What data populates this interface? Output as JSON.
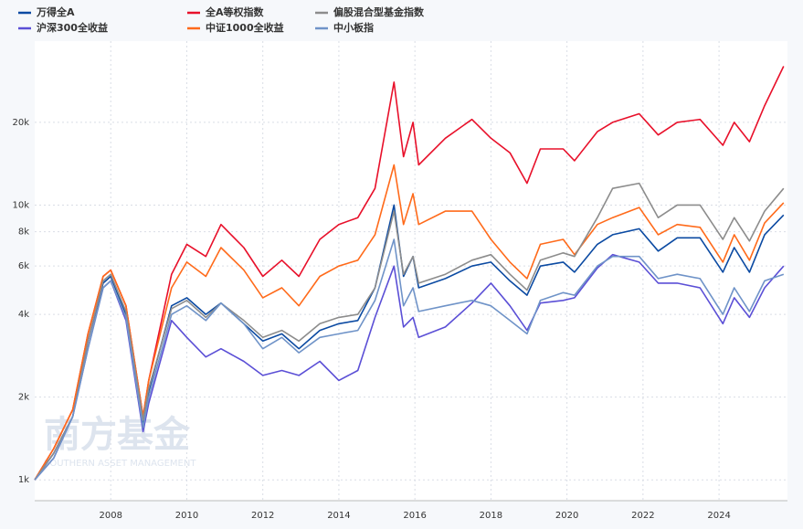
{
  "chart_data": {
    "type": "line",
    "log_scale": true,
    "grid": true,
    "legend_position": "top",
    "watermark": {
      "title": "南方基金",
      "subtitle": "SOUTHERN ASSET MANAGEMENT"
    },
    "xlim": [
      2006,
      2025.8
    ],
    "xticks": [
      2008,
      2010,
      2012,
      2014,
      2016,
      2018,
      2020,
      2022,
      2024
    ],
    "ylim": [
      840,
      39500
    ],
    "yticks": [
      {
        "value": 1000,
        "label": "1k"
      },
      {
        "value": 2000,
        "label": "2k"
      },
      {
        "value": 4000,
        "label": "4k"
      },
      {
        "value": 6000,
        "label": "6k"
      },
      {
        "value": 8000,
        "label": "8k"
      },
      {
        "value": 10000,
        "label": "10k"
      },
      {
        "value": 20000,
        "label": "20k"
      }
    ],
    "x": [
      2006.0,
      2006.5,
      2007.0,
      2007.4,
      2007.8,
      2008.0,
      2008.4,
      2008.85,
      2009.0,
      2009.6,
      2010.0,
      2010.5,
      2010.9,
      2011.5,
      2012.0,
      2012.5,
      2012.95,
      2013.5,
      2014.0,
      2014.5,
      2014.95,
      2015.45,
      2015.7,
      2015.95,
      2016.1,
      2016.8,
      2017.5,
      2018.0,
      2018.5,
      2018.95,
      2019.3,
      2019.9,
      2020.2,
      2020.8,
      2021.2,
      2021.9,
      2022.4,
      2022.9,
      2023.5,
      2024.1,
      2024.4,
      2024.8,
      2025.2,
      2025.7
    ],
    "series": [
      {
        "name": "万得全A",
        "color": "#0b4aa2",
        "values": [
          1000,
          1250,
          1700,
          3200,
          5200,
          5500,
          4000,
          1600,
          2100,
          4300,
          4600,
          4000,
          4400,
          3700,
          3200,
          3400,
          3000,
          3500,
          3700,
          3800,
          5000,
          10000,
          5500,
          6500,
          5000,
          5400,
          6000,
          6200,
          5300,
          4700,
          6000,
          6200,
          5700,
          7200,
          7800,
          8200,
          6800,
          7600,
          7600,
          5700,
          7000,
          5700,
          7800,
          9200
        ]
      },
      {
        "name": "沪深300全收益",
        "color": "#5b4fd6",
        "values": [
          1000,
          1200,
          1700,
          3000,
          5000,
          5300,
          3800,
          1500,
          1900,
          3800,
          3300,
          2800,
          3000,
          2700,
          2400,
          2500,
          2400,
          2700,
          2300,
          2500,
          3900,
          6000,
          3600,
          3900,
          3300,
          3600,
          4400,
          5200,
          4300,
          3500,
          4400,
          4500,
          4600,
          5900,
          6600,
          6200,
          5200,
          5200,
          5000,
          3700,
          4600,
          3900,
          5000,
          6000
        ]
      },
      {
        "name": "全A等权指数",
        "color": "#e8102a",
        "values": [
          1000,
          1300,
          1800,
          3400,
          5500,
          5800,
          4300,
          1700,
          2300,
          5600,
          7200,
          6500,
          8500,
          7000,
          5500,
          6300,
          5500,
          7500,
          8500,
          9000,
          11500,
          28000,
          15000,
          20000,
          14000,
          17500,
          20500,
          17500,
          15500,
          12000,
          16000,
          16000,
          14500,
          18500,
          20000,
          21500,
          18000,
          20000,
          20500,
          16500,
          20000,
          17000,
          23000,
          32000
        ]
      },
      {
        "name": "中证1000全收益",
        "color": "#ff6a1a",
        "values": [
          1000,
          1300,
          1800,
          3400,
          5500,
          5800,
          4300,
          1700,
          2300,
          5000,
          6200,
          5500,
          7000,
          5800,
          4600,
          5000,
          4300,
          5500,
          6000,
          6300,
          7800,
          14000,
          8500,
          11000,
          8500,
          9500,
          9500,
          7500,
          6200,
          5400,
          7200,
          7500,
          6600,
          8500,
          9000,
          9800,
          7800,
          8500,
          8300,
          6200,
          7800,
          6300,
          8600,
          10200
        ]
      },
      {
        "name": "偏股混合型基金指数",
        "color": "#8c8c8c",
        "values": [
          1000,
          1250,
          1700,
          3200,
          5300,
          5600,
          4100,
          1650,
          2150,
          4200,
          4500,
          3900,
          4400,
          3800,
          3300,
          3500,
          3200,
          3700,
          3900,
          4000,
          5000,
          9500,
          5600,
          6500,
          5200,
          5600,
          6300,
          6600,
          5600,
          4900,
          6300,
          6700,
          6500,
          9000,
          11500,
          12000,
          9000,
          10000,
          10000,
          7500,
          9000,
          7400,
          9500,
          11500
        ]
      },
      {
        "name": "中小板指",
        "color": "#6f93c8",
        "values": [
          1000,
          1200,
          1700,
          3000,
          5000,
          5300,
          3900,
          1550,
          2000,
          4000,
          4300,
          3800,
          4400,
          3700,
          3000,
          3300,
          2900,
          3300,
          3400,
          3500,
          4500,
          7500,
          4300,
          5000,
          4100,
          4300,
          4500,
          4300,
          3800,
          3400,
          4500,
          4800,
          4700,
          6000,
          6500,
          6500,
          5400,
          5600,
          5400,
          4000,
          5000,
          4100,
          5300,
          5600
        ]
      }
    ]
  }
}
